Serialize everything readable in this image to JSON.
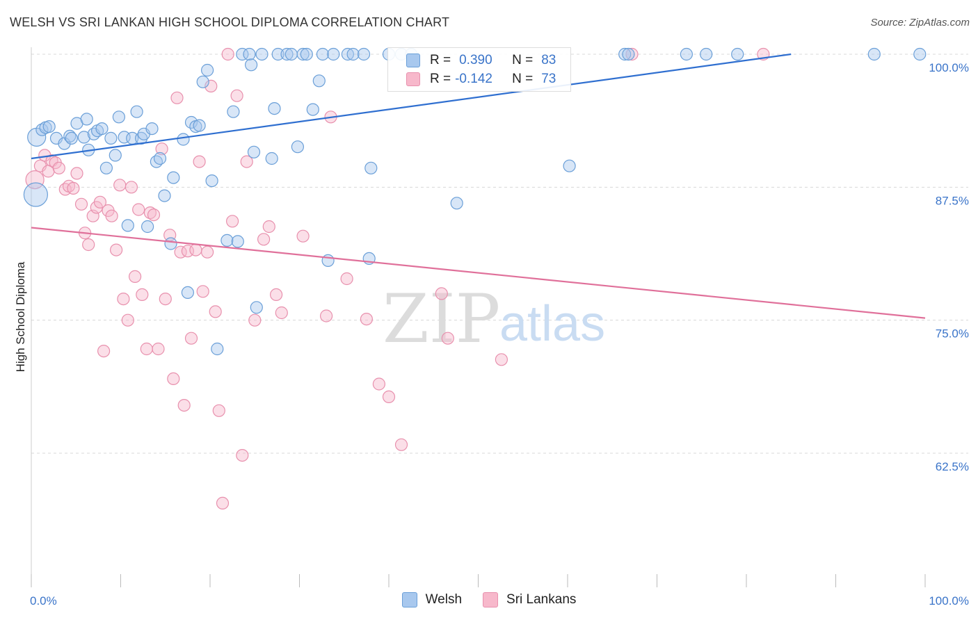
{
  "header": {
    "title": "WELSH VS SRI LANKAN HIGH SCHOOL DIPLOMA CORRELATION CHART",
    "source": "Source: ZipAtlas.com"
  },
  "watermark": {
    "zip": "ZIP",
    "atlas": "atlas"
  },
  "legend": {
    "welsh": {
      "r_label": "R =",
      "r_value": "0.390",
      "n_label": "N =",
      "n_value": "83"
    },
    "srilankan": {
      "r_label": "R =",
      "r_value": "-0.142",
      "n_label": "N =",
      "n_value": "73"
    }
  },
  "bottom_legend": {
    "welsh": "Welsh",
    "srilankan": "Sri Lankans"
  },
  "colors": {
    "welsh_fill": "#a8c8ee",
    "welsh_stroke": "#6a9fd8",
    "welsh_line": "#2f6fd0",
    "srilankan_fill": "#f7b8cb",
    "srilankan_stroke": "#e890ad",
    "srilankan_line": "#e0709a",
    "tick_label": "#3a74c9",
    "grid": "#d8d8d8"
  },
  "chart_data": {
    "type": "scatter",
    "title": "WELSH VS SRI LANKAN HIGH SCHOOL DIPLOMA CORRELATION CHART",
    "xlabel": "",
    "ylabel": "High School Diploma",
    "xlim": [
      0,
      100
    ],
    "ylim": [
      50,
      101.5
    ],
    "x_tick_labels": [
      "0.0%",
      "100.0%"
    ],
    "y_ticks": [
      62.5,
      75.0,
      87.5,
      100.0
    ],
    "y_tick_labels": [
      "62.5%",
      "75.0%",
      "87.5%",
      "100.0%"
    ],
    "grid": true,
    "series": [
      {
        "name": "Welsh",
        "r": 0.39,
        "n": 83,
        "trend": {
          "x": [
            0,
            85
          ],
          "y": [
            90.2,
            100.0
          ]
        },
        "points": [
          [
            0.5,
            86.8,
            3
          ],
          [
            0.6,
            92.2,
            2
          ],
          [
            1.2,
            92.9,
            1
          ],
          [
            1.6,
            93.1,
            1
          ],
          [
            2.0,
            93.2,
            1
          ],
          [
            2.8,
            92.1,
            1
          ],
          [
            3.7,
            91.6,
            1
          ],
          [
            4.3,
            92.3,
            1
          ],
          [
            4.5,
            92.1,
            1
          ],
          [
            5.1,
            93.5,
            1
          ],
          [
            5.9,
            92.2,
            1
          ],
          [
            6.2,
            93.9,
            1
          ],
          [
            6.4,
            91.0,
            1
          ],
          [
            7.0,
            92.5,
            1
          ],
          [
            7.4,
            92.8,
            1
          ],
          [
            7.9,
            93.0,
            1
          ],
          [
            8.4,
            89.3,
            1
          ],
          [
            8.9,
            92.1,
            1
          ],
          [
            9.4,
            90.5,
            1
          ],
          [
            9.8,
            94.1,
            1
          ],
          [
            10.4,
            92.2,
            1
          ],
          [
            10.8,
            83.9,
            1
          ],
          [
            11.3,
            92.1,
            1
          ],
          [
            11.8,
            94.6,
            1
          ],
          [
            12.3,
            92.1,
            1
          ],
          [
            12.6,
            92.5,
            1
          ],
          [
            13.0,
            83.8,
            1
          ],
          [
            13.5,
            93.0,
            1
          ],
          [
            14.0,
            89.9,
            1
          ],
          [
            14.4,
            90.2,
            1
          ],
          [
            14.9,
            86.7,
            1
          ],
          [
            15.6,
            82.2,
            1
          ],
          [
            15.9,
            88.4,
            1
          ],
          [
            17.0,
            92.0,
            1
          ],
          [
            17.5,
            77.6,
            1
          ],
          [
            17.9,
            93.6,
            1
          ],
          [
            18.4,
            93.2,
            1
          ],
          [
            18.8,
            93.3,
            1
          ],
          [
            19.2,
            97.4,
            1
          ],
          [
            19.7,
            98.5,
            1
          ],
          [
            20.2,
            88.1,
            1
          ],
          [
            20.8,
            72.3,
            1
          ],
          [
            21.9,
            82.5,
            1
          ],
          [
            22.6,
            94.6,
            1
          ],
          [
            23.1,
            82.4,
            1
          ],
          [
            23.6,
            100.0,
            1
          ],
          [
            24.4,
            100.0,
            1
          ],
          [
            24.6,
            99.0,
            1
          ],
          [
            24.9,
            90.8,
            1
          ],
          [
            25.2,
            76.2,
            1
          ],
          [
            25.8,
            100.0,
            1
          ],
          [
            26.9,
            90.2,
            1
          ],
          [
            27.2,
            94.9,
            1
          ],
          [
            27.6,
            100.0,
            1
          ],
          [
            28.6,
            100.0,
            1
          ],
          [
            29.1,
            100.0,
            1
          ],
          [
            29.8,
            91.3,
            1
          ],
          [
            30.4,
            100.0,
            1
          ],
          [
            30.8,
            100.0,
            1
          ],
          [
            31.5,
            94.8,
            1
          ],
          [
            32.2,
            97.5,
            1
          ],
          [
            32.6,
            100.0,
            1
          ],
          [
            33.2,
            80.6,
            1
          ],
          [
            33.8,
            100.0,
            1
          ],
          [
            35.4,
            100.0,
            1
          ],
          [
            36.0,
            100.0,
            1
          ],
          [
            37.2,
            100.0,
            1
          ],
          [
            37.8,
            80.8,
            1
          ],
          [
            38.0,
            89.3,
            1
          ],
          [
            40.0,
            100.0,
            1
          ],
          [
            41.4,
            100.0,
            1
          ],
          [
            42.5,
            100.0,
            1
          ],
          [
            47.6,
            86.0,
            1
          ],
          [
            60.2,
            89.5,
            1
          ],
          [
            66.4,
            100.0,
            1
          ],
          [
            66.8,
            100.0,
            1
          ],
          [
            73.3,
            100.0,
            1
          ],
          [
            75.5,
            100.0,
            1
          ],
          [
            79.0,
            100.0,
            1
          ],
          [
            94.3,
            100.0,
            1
          ],
          [
            99.4,
            100.0,
            1
          ]
        ]
      },
      {
        "name": "Sri Lankans",
        "r": -0.142,
        "n": 73,
        "trend": {
          "x": [
            0,
            100
          ],
          "y": [
            83.7,
            75.2
          ]
        },
        "points": [
          [
            0.4,
            88.2,
            2
          ],
          [
            1.0,
            89.5,
            1
          ],
          [
            1.5,
            90.5,
            1
          ],
          [
            1.9,
            89.0,
            1
          ],
          [
            2.3,
            90.0,
            1
          ],
          [
            2.7,
            89.8,
            1
          ],
          [
            3.1,
            89.3,
            1
          ],
          [
            3.8,
            87.3,
            1
          ],
          [
            4.2,
            87.6,
            1
          ],
          [
            4.7,
            87.4,
            1
          ],
          [
            5.1,
            88.8,
            1
          ],
          [
            5.6,
            85.9,
            1
          ],
          [
            6.0,
            83.2,
            1
          ],
          [
            6.4,
            82.1,
            1
          ],
          [
            6.9,
            84.8,
            1
          ],
          [
            7.3,
            85.6,
            1
          ],
          [
            7.7,
            86.1,
            1
          ],
          [
            8.1,
            72.1,
            1
          ],
          [
            8.6,
            85.3,
            1
          ],
          [
            9.0,
            84.8,
            1
          ],
          [
            9.5,
            81.6,
            1
          ],
          [
            9.9,
            87.7,
            1
          ],
          [
            10.3,
            77.0,
            1
          ],
          [
            10.8,
            75.0,
            1
          ],
          [
            11.2,
            87.5,
            1
          ],
          [
            11.6,
            79.1,
            1
          ],
          [
            12.0,
            85.4,
            1
          ],
          [
            12.4,
            77.4,
            1
          ],
          [
            12.9,
            72.3,
            1
          ],
          [
            13.3,
            85.1,
            1
          ],
          [
            13.7,
            84.9,
            1
          ],
          [
            14.2,
            72.3,
            1
          ],
          [
            14.6,
            91.1,
            1
          ],
          [
            15.0,
            77.0,
            1
          ],
          [
            15.5,
            83.0,
            1
          ],
          [
            15.9,
            69.5,
            1
          ],
          [
            16.3,
            95.9,
            1
          ],
          [
            16.7,
            81.4,
            1
          ],
          [
            17.1,
            67.0,
            1
          ],
          [
            17.5,
            81.5,
            1
          ],
          [
            17.9,
            73.3,
            1
          ],
          [
            18.4,
            81.6,
            1
          ],
          [
            18.8,
            89.9,
            1
          ],
          [
            19.2,
            77.7,
            1
          ],
          [
            19.7,
            81.4,
            1
          ],
          [
            20.1,
            97.0,
            1
          ],
          [
            20.6,
            75.8,
            1
          ],
          [
            21.0,
            66.5,
            1
          ],
          [
            21.4,
            57.8,
            1
          ],
          [
            22.0,
            100.0,
            1
          ],
          [
            22.5,
            84.3,
            1
          ],
          [
            23.0,
            96.1,
            1
          ],
          [
            23.6,
            62.3,
            1
          ],
          [
            24.1,
            89.9,
            1
          ],
          [
            25.0,
            75.0,
            1
          ],
          [
            26.0,
            82.6,
            1
          ],
          [
            26.6,
            83.8,
            1
          ],
          [
            27.4,
            77.4,
            1
          ],
          [
            28.0,
            75.7,
            1
          ],
          [
            30.4,
            82.9,
            1
          ],
          [
            33.0,
            75.4,
            1
          ],
          [
            33.5,
            94.1,
            1
          ],
          [
            35.3,
            78.9,
            1
          ],
          [
            37.5,
            75.1,
            1
          ],
          [
            38.9,
            69.0,
            1
          ],
          [
            40.0,
            67.8,
            1
          ],
          [
            41.4,
            63.3,
            1
          ],
          [
            45.9,
            77.5,
            1
          ],
          [
            46.6,
            73.3,
            1
          ],
          [
            52.6,
            71.3,
            1
          ],
          [
            67.2,
            100.0,
            1
          ],
          [
            81.9,
            100.0,
            1
          ]
        ]
      }
    ]
  }
}
